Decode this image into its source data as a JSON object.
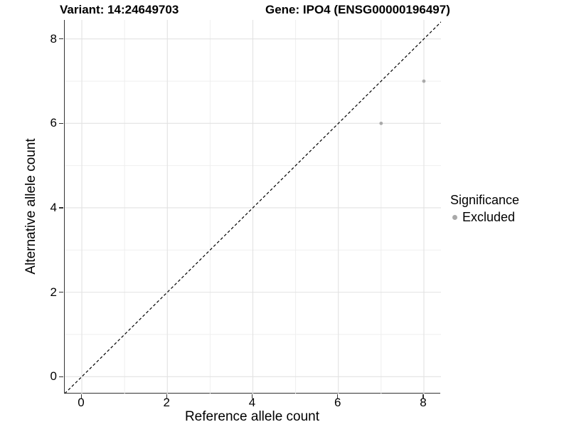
{
  "header": {
    "title_left": "Variant: 14:24649703",
    "title_right": "Gene: IPO4 (ENSG00000196497)"
  },
  "axes": {
    "x_title": "Reference allele count",
    "y_title": "Alternative allele count"
  },
  "legend": {
    "title": "Significance",
    "position": "right",
    "items": [
      {
        "label": "Excluded",
        "color": "#a9a9a9"
      }
    ]
  },
  "colors": {
    "background": "#ffffff",
    "grid_major": "#e2e2e2",
    "grid_minor": "#ededed",
    "axis_line": "#333333",
    "identity_line": "#000000",
    "point": "#a9a9a9",
    "text": "#000000"
  },
  "chart_data": {
    "type": "scatter",
    "title": "Variant: 14:24649703   Gene: IPO4 (ENSG00000196497)",
    "xlabel": "Reference allele count",
    "ylabel": "Alternative allele count",
    "xlim": [
      -0.4,
      8.4
    ],
    "ylim": [
      -0.4,
      8.45
    ],
    "x_ticks": [
      0,
      2,
      4,
      6,
      8
    ],
    "y_ticks": [
      0,
      2,
      4,
      6,
      8
    ],
    "x_minor_ticks": [
      1,
      3,
      5,
      7
    ],
    "y_minor_ticks": [
      1,
      3,
      5,
      7
    ],
    "grid": true,
    "legend_position": "right",
    "identity_line": {
      "type": "abline",
      "slope": 1,
      "intercept": 0,
      "style": "dashed",
      "color": "#000000"
    },
    "series": [
      {
        "name": "Excluded",
        "color": "#a9a9a9",
        "marker": "circle",
        "points": [
          {
            "x": 7,
            "y": 6
          },
          {
            "x": 8,
            "y": 7
          }
        ]
      }
    ]
  }
}
